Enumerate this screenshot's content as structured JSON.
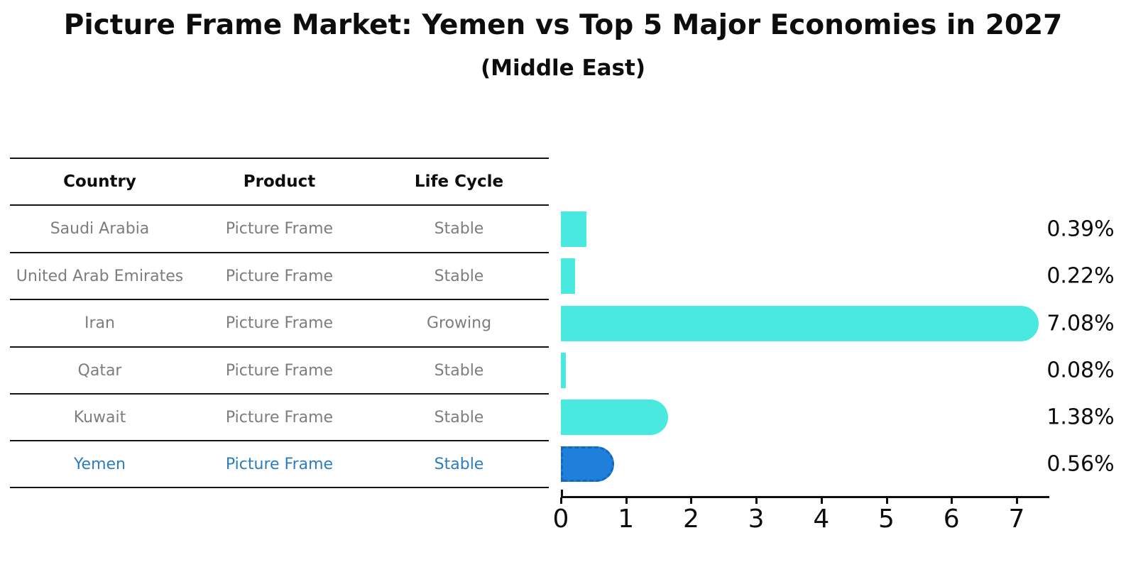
{
  "title": "Picture Frame Market: Yemen vs Top 5 Major Economies in 2027",
  "subtitle": "(Middle East)",
  "table": {
    "headers": [
      "Country",
      "Product",
      "Life Cycle"
    ],
    "rows": [
      {
        "country": "Saudi Arabia",
        "product": "Picture Frame",
        "life_cycle": "Stable",
        "value": 0.39,
        "value_label": "0.39%",
        "highlight": false
      },
      {
        "country": "United Arab Emirates",
        "product": "Picture Frame",
        "life_cycle": "Stable",
        "value": 0.22,
        "value_label": "0.22%",
        "highlight": false
      },
      {
        "country": "Iran",
        "product": "Picture Frame",
        "life_cycle": "Growing",
        "value": 7.08,
        "value_label": "7.08%",
        "highlight": false
      },
      {
        "country": "Qatar",
        "product": "Picture Frame",
        "life_cycle": "Stable",
        "value": 0.08,
        "value_label": "0.08%",
        "highlight": false
      },
      {
        "country": "Kuwait",
        "product": "Picture Frame",
        "life_cycle": "Stable",
        "value": 1.38,
        "value_label": "1.38%",
        "highlight": false
      },
      {
        "country": "Yemen",
        "product": "Picture Frame",
        "life_cycle": "Stable",
        "value": 0.56,
        "value_label": "0.56%",
        "highlight": true
      }
    ]
  },
  "chart_data": {
    "type": "bar",
    "orientation": "horizontal",
    "title": "Picture Frame Market: Yemen vs Top 5 Major Economies in 2027",
    "subtitle": "(Middle East)",
    "categories": [
      "Saudi Arabia",
      "United Arab Emirates",
      "Iran",
      "Qatar",
      "Kuwait",
      "Yemen"
    ],
    "values": [
      0.39,
      0.22,
      7.08,
      0.08,
      1.38,
      0.56
    ],
    "value_labels": [
      "0.39%",
      "0.22%",
      "7.08%",
      "0.08%",
      "1.38%",
      "0.56%"
    ],
    "xlabel": "",
    "ylabel": "",
    "xlim": [
      0,
      7.5
    ],
    "xticks": [
      0,
      1,
      2,
      3,
      4,
      5,
      6,
      7
    ],
    "grid": false,
    "legend": "none",
    "highlight_index": 5,
    "bar_color": "#49e9e0",
    "highlight_bar_color": "#1e80db",
    "highlight_border_color": "#1567bd",
    "highlight_text_color": "#2b7cc1",
    "table_text_color": "#7d7d7d",
    "axis_color": "#0d0d0d"
  }
}
